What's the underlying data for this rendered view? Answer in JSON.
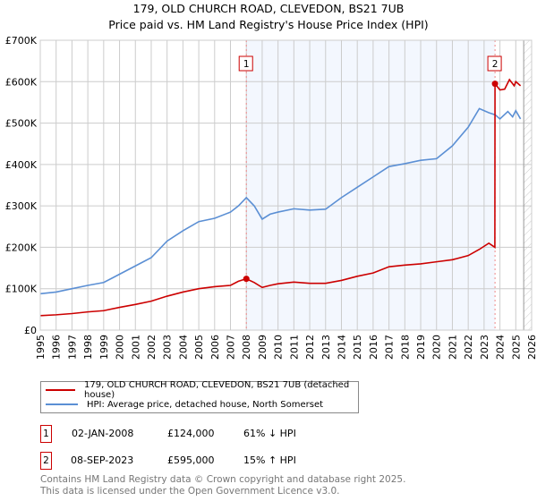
{
  "chart_data": {
    "type": "line",
    "title": "179, OLD CHURCH ROAD, CLEVEDON, BS21 7UB",
    "subtitle": "Price paid vs. HM Land Registry's House Price Index (HPI)",
    "xlim": [
      1995,
      2026
    ],
    "ylim": [
      0,
      700000
    ],
    "x_ticks": [
      "1995",
      "1996",
      "1997",
      "1998",
      "1999",
      "2000",
      "2001",
      "2002",
      "2003",
      "2004",
      "2005",
      "2006",
      "2007",
      "2008",
      "2009",
      "2010",
      "2011",
      "2012",
      "2013",
      "2014",
      "2015",
      "2016",
      "2017",
      "2018",
      "2019",
      "2020",
      "2021",
      "2022",
      "2023",
      "2024",
      "2025",
      "2026"
    ],
    "y_ticks": [
      {
        "v": 0,
        "label": "£0"
      },
      {
        "v": 100000,
        "label": "£100K"
      },
      {
        "v": 200000,
        "label": "£200K"
      },
      {
        "v": 300000,
        "label": "£300K"
      },
      {
        "v": 400000,
        "label": "£400K"
      },
      {
        "v": 500000,
        "label": "£500K"
      },
      {
        "v": 600000,
        "label": "£600K"
      },
      {
        "v": 700000,
        "label": "£700K"
      }
    ],
    "grid": true,
    "shaded_range": [
      2008.0,
      2023.69
    ],
    "forecast_hatch_from": 2025.5,
    "series": [
      {
        "name": "179, OLD CHURCH ROAD, CLEVEDON, BS21 7UB (detached house)",
        "color": "#cc0000",
        "x": [
          1995,
          1996,
          1997,
          1998,
          1999,
          2000,
          2001,
          2002,
          2003,
          2004,
          2005,
          2006,
          2007,
          2007.5,
          2008.0,
          2008.5,
          2009.0,
          2009.5,
          2010,
          2011,
          2012,
          2013,
          2014,
          2015,
          2016,
          2017,
          2018,
          2019,
          2020,
          2021,
          2022,
          2022.7,
          2023.3,
          2023.68,
          2023.69,
          2024,
          2024.3,
          2024.6,
          2024.9,
          2025,
          2025.3
        ],
        "y": [
          35000,
          37000,
          40000,
          44000,
          47000,
          55000,
          62000,
          70000,
          82000,
          92000,
          100000,
          105000,
          108000,
          118000,
          124000,
          115000,
          103000,
          108000,
          112000,
          116000,
          113000,
          113000,
          120000,
          130000,
          138000,
          153000,
          157000,
          160000,
          165000,
          170000,
          180000,
          195000,
          210000,
          200000,
          595000,
          580000,
          582000,
          605000,
          590000,
          600000,
          590000
        ]
      },
      {
        "name": "HPI: Average price, detached house, North Somerset",
        "color": "#5b8fd4",
        "x": [
          1995,
          1996,
          1997,
          1998,
          1999,
          2000,
          2001,
          2002,
          2003,
          2004,
          2005,
          2006,
          2007,
          2007.5,
          2008.0,
          2008.5,
          2009.0,
          2009.5,
          2010,
          2011,
          2012,
          2013,
          2014,
          2015,
          2016,
          2017,
          2018,
          2019,
          2020,
          2021,
          2022,
          2022.7,
          2023.3,
          2023.7,
          2024,
          2024.5,
          2024.8,
          2025,
          2025.3
        ],
        "y": [
          88000,
          92000,
          100000,
          108000,
          115000,
          135000,
          155000,
          175000,
          215000,
          240000,
          262000,
          270000,
          285000,
          300000,
          320000,
          300000,
          268000,
          280000,
          285000,
          293000,
          290000,
          292000,
          320000,
          345000,
          370000,
          395000,
          402000,
          410000,
          414000,
          445000,
          490000,
          535000,
          525000,
          520000,
          510000,
          528000,
          515000,
          530000,
          510000
        ]
      }
    ],
    "annotations": [
      {
        "label": "1",
        "x": 2008.0,
        "y": 124000
      },
      {
        "label": "2",
        "x": 2023.69,
        "y": 595000
      }
    ]
  },
  "table": [
    {
      "num": "1",
      "date": "02-JAN-2008",
      "price": "£124,000",
      "hpi": "61% ↓ HPI"
    },
    {
      "num": "2",
      "date": "08-SEP-2023",
      "price": "£595,000",
      "hpi": "15% ↑ HPI"
    }
  ],
  "footer": {
    "line1": "Contains HM Land Registry data © Crown copyright and database right 2025.",
    "line2": "This data is licensed under the Open Government Licence v3.0."
  }
}
